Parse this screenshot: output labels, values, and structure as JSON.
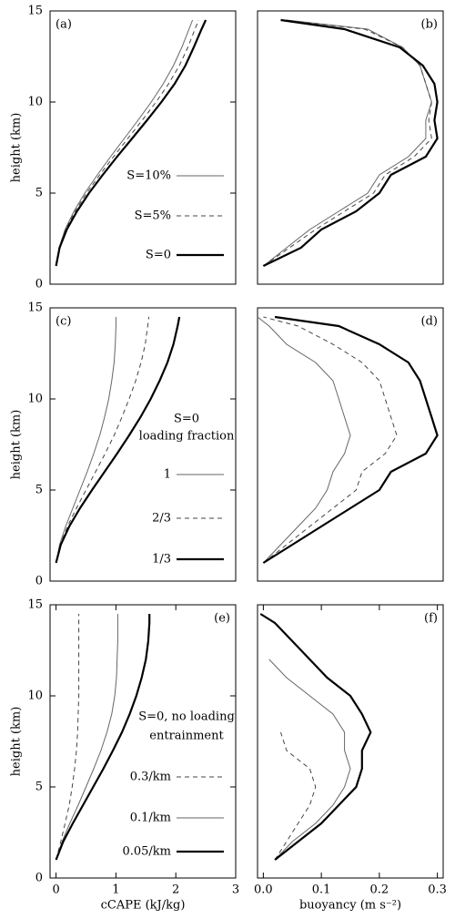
{
  "chart_data": [
    {
      "type": "line",
      "label": "(a)",
      "label_loc": "upper left",
      "ylabel": "height (km)",
      "xlim": [
        -0.1,
        3
      ],
      "ylim": [
        0,
        15
      ],
      "yticks": [
        0,
        5,
        10,
        15
      ],
      "y": [
        1,
        2,
        3,
        4,
        5,
        6,
        7,
        8,
        9,
        10,
        11,
        12,
        13,
        14,
        14.5
      ],
      "series": [
        {
          "name": "S=10%",
          "color": "#666666",
          "linewidth": 1,
          "linestyle": "solid",
          "values": [
            0,
            0.05,
            0.15,
            0.3,
            0.48,
            0.69,
            0.91,
            1.14,
            1.37,
            1.59,
            1.79,
            1.96,
            2.1,
            2.22,
            2.28
          ]
        },
        {
          "name": "S=5%",
          "color": "#444444",
          "linewidth": 1,
          "linestyle": "dashed",
          "values": [
            0,
            0.05,
            0.16,
            0.32,
            0.51,
            0.73,
            0.96,
            1.2,
            1.44,
            1.67,
            1.88,
            2.06,
            2.2,
            2.32,
            2.38
          ]
        },
        {
          "name": "S=0",
          "color": "#000000",
          "linewidth": 2.2,
          "linestyle": "solid",
          "values": [
            0,
            0.06,
            0.18,
            0.35,
            0.55,
            0.78,
            1.02,
            1.27,
            1.52,
            1.76,
            1.98,
            2.16,
            2.3,
            2.43,
            2.5
          ]
        }
      ]
    },
    {
      "type": "line",
      "label": "(b)",
      "label_loc": "upper right",
      "xlim": [
        -0.01,
        0.31
      ],
      "ylim": [
        0,
        15
      ],
      "y": [
        1,
        2,
        3,
        4,
        5,
        6,
        7,
        8,
        9,
        10,
        11,
        12,
        13,
        14,
        14.5
      ],
      "series": [
        {
          "color": "#666666",
          "linewidth": 1,
          "linestyle": "solid",
          "values": [
            0,
            0.04,
            0.08,
            0.13,
            0.18,
            0.2,
            0.25,
            0.28,
            0.28,
            0.29,
            0.28,
            0.27,
            0.24,
            0.18,
            0.04
          ]
        },
        {
          "color": "#444444",
          "linewidth": 1,
          "linestyle": "dashed",
          "values": [
            0,
            0.045,
            0.09,
            0.14,
            0.19,
            0.21,
            0.26,
            0.29,
            0.285,
            0.29,
            0.28,
            0.27,
            0.24,
            0.175,
            0.035
          ]
        },
        {
          "color": "#000000",
          "linewidth": 2.2,
          "linestyle": "solid",
          "values": [
            0,
            0.065,
            0.1,
            0.16,
            0.2,
            0.22,
            0.28,
            0.3,
            0.295,
            0.3,
            0.295,
            0.275,
            0.235,
            0.14,
            0.03
          ]
        }
      ]
    },
    {
      "type": "line",
      "label": "(c)",
      "label_loc": "upper left",
      "ylabel": "height (km)",
      "xlim": [
        -0.1,
        3
      ],
      "ylim": [
        0,
        15
      ],
      "yticks": [
        0,
        5,
        10,
        15
      ],
      "legend_title": [
        "S=0",
        "loading fraction"
      ],
      "y": [
        1,
        2,
        3,
        4,
        5,
        6,
        7,
        8,
        9,
        10,
        11,
        12,
        13,
        14,
        14.5
      ],
      "series": [
        {
          "name": "1",
          "color": "#666666",
          "linewidth": 1,
          "linestyle": "solid",
          "values": [
            0,
            0.06,
            0.16,
            0.28,
            0.4,
            0.52,
            0.63,
            0.73,
            0.81,
            0.88,
            0.93,
            0.97,
            0.99,
            1.0,
            1.0
          ]
        },
        {
          "name": "2/3",
          "color": "#444444",
          "linewidth": 1,
          "linestyle": "dashed",
          "values": [
            0,
            0.07,
            0.19,
            0.34,
            0.5,
            0.66,
            0.82,
            0.97,
            1.1,
            1.22,
            1.33,
            1.42,
            1.49,
            1.53,
            1.55
          ]
        },
        {
          "name": "1/3",
          "color": "#000000",
          "linewidth": 2.2,
          "linestyle": "solid",
          "values": [
            0,
            0.08,
            0.22,
            0.4,
            0.6,
            0.81,
            1.02,
            1.22,
            1.41,
            1.58,
            1.73,
            1.86,
            1.96,
            2.03,
            2.06
          ]
        }
      ]
    },
    {
      "type": "line",
      "label": "(d)",
      "label_loc": "upper right",
      "xlim": [
        -0.01,
        0.31
      ],
      "ylim": [
        0,
        15
      ],
      "y": [
        1,
        2,
        3,
        4,
        5,
        6,
        7,
        8,
        9,
        10,
        11,
        12,
        13,
        14,
        14.5
      ],
      "series": [
        {
          "color": "#666666",
          "linewidth": 1,
          "linestyle": "solid",
          "values": [
            0,
            0.03,
            0.06,
            0.09,
            0.11,
            0.12,
            0.14,
            0.15,
            0.14,
            0.13,
            0.12,
            0.09,
            0.04,
            0.01,
            -0.01
          ]
        },
        {
          "color": "#444444",
          "linewidth": 1,
          "linestyle": "dashed",
          "values": [
            0,
            0.04,
            0.08,
            0.12,
            0.16,
            0.17,
            0.21,
            0.23,
            0.22,
            0.21,
            0.2,
            0.17,
            0.12,
            0.06,
            0
          ]
        },
        {
          "color": "#000000",
          "linewidth": 2.2,
          "linestyle": "solid",
          "values": [
            0,
            0.05,
            0.1,
            0.15,
            0.2,
            0.22,
            0.28,
            0.3,
            0.29,
            0.28,
            0.27,
            0.25,
            0.2,
            0.13,
            0.02
          ]
        }
      ]
    },
    {
      "type": "line",
      "label": "(e)",
      "label_loc": "upper right",
      "ylabel": "height (km)",
      "xlabel": "cCAPE (kJ/kg)",
      "xlim": [
        -0.1,
        3
      ],
      "ylim": [
        0,
        15
      ],
      "yticks": [
        0,
        5,
        10,
        15
      ],
      "xticks": [
        0,
        1,
        2,
        3
      ],
      "legend_title": [
        "S=0, no loading",
        "entrainment"
      ],
      "y": [
        1,
        2,
        3,
        4,
        5,
        6,
        7,
        8,
        9,
        10,
        11,
        12,
        13,
        14,
        14.5
      ],
      "series": [
        {
          "name": "0.3/km",
          "color": "#444444",
          "linewidth": 1,
          "linestyle": "dashed",
          "values": [
            0,
            0.08,
            0.15,
            0.22,
            0.27,
            0.31,
            0.34,
            0.36,
            0.37,
            0.38,
            0.38,
            0.38,
            0.38,
            0.38,
            0.38
          ]
        },
        {
          "name": "0.1/km",
          "color": "#666666",
          "linewidth": 1,
          "linestyle": "solid",
          "values": [
            0,
            0.1,
            0.23,
            0.37,
            0.5,
            0.63,
            0.75,
            0.85,
            0.93,
            0.98,
            1.01,
            1.02,
            1.03,
            1.03,
            1.03
          ]
        },
        {
          "name": "0.05/km",
          "color": "#000000",
          "linewidth": 2.2,
          "linestyle": "solid",
          "values": [
            0,
            0.12,
            0.28,
            0.45,
            0.62,
            0.79,
            0.95,
            1.1,
            1.23,
            1.34,
            1.43,
            1.5,
            1.54,
            1.56,
            1.56
          ]
        }
      ]
    },
    {
      "type": "line",
      "label": "(f)",
      "label_loc": "upper right",
      "xlabel": "buoyancy (m s⁻²)",
      "xlim": [
        -0.01,
        0.31
      ],
      "ylim": [
        0,
        15
      ],
      "xticks": [
        {
          "value": 0,
          "label": "0.0"
        },
        0.1,
        0.2,
        0.3
      ],
      "y": [
        1,
        2,
        3,
        4,
        5,
        6,
        7,
        8,
        9,
        10,
        11,
        12,
        13,
        14,
        14.5
      ],
      "series": [
        {
          "color": "#444444",
          "linewidth": 1,
          "linestyle": "dashed",
          "values": [
            0.02,
            0.04,
            0.06,
            0.08,
            0.09,
            0.08,
            0.04,
            0.03,
            null,
            null,
            null,
            null,
            null,
            null,
            null
          ]
        },
        {
          "color": "#666666",
          "linewidth": 1,
          "linestyle": "solid",
          "values": [
            0.02,
            0.05,
            0.09,
            0.12,
            0.14,
            0.15,
            0.14,
            0.14,
            0.12,
            0.08,
            0.04,
            0.01,
            null,
            null,
            null
          ]
        },
        {
          "color": "#000000",
          "linewidth": 2.2,
          "linestyle": "solid",
          "values": [
            0.02,
            0.06,
            0.1,
            0.13,
            0.16,
            0.17,
            0.17,
            0.185,
            0.17,
            0.15,
            0.11,
            0.08,
            0.05,
            0.02,
            -0.005
          ]
        }
      ]
    }
  ]
}
